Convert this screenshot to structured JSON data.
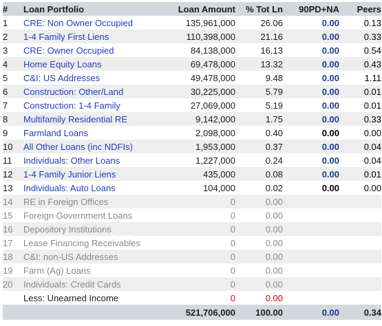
{
  "header": {
    "idx": "#",
    "name": "Loan Portfolio",
    "amount": "Loan Amount",
    "pct": "% Tot Ln",
    "pd": "90PD+NA",
    "peers": "Peers"
  },
  "rows": [
    {
      "idx": "1",
      "name": "CRE: Non Owner Occupied",
      "amount": "135,961,000",
      "pct": "26.06",
      "pd": "0.00",
      "peers": "0.13"
    },
    {
      "idx": "2",
      "name": "1-4 Family First Liens",
      "amount": "110,398,000",
      "pct": "21.16",
      "pd": "0.00",
      "peers": "0.33"
    },
    {
      "idx": "3",
      "name": "CRE: Owner Occupied",
      "amount": "84,138,000",
      "pct": "16.13",
      "pd": "0.00",
      "peers": "0.54"
    },
    {
      "idx": "4",
      "name": "Home Equity Loans",
      "amount": "69,478,000",
      "pct": "13.32",
      "pd": "0.00",
      "peers": "0.43"
    },
    {
      "idx": "5",
      "name": "C&I: US Addresses",
      "amount": "49,478,000",
      "pct": "9.48",
      "pd": "0.00",
      "peers": "1.11"
    },
    {
      "idx": "6",
      "name": "Construction: Other/Land",
      "amount": "30,225,000",
      "pct": "5.79",
      "pd": "0.00",
      "peers": "0.01"
    },
    {
      "idx": "7",
      "name": "Construction: 1-4 Family",
      "amount": "27,069,000",
      "pct": "5.19",
      "pd": "0.00",
      "peers": "0.01"
    },
    {
      "idx": "8",
      "name": "Multifamily Residential RE",
      "amount": "9,142,000",
      "pct": "1.75",
      "pd": "0.00",
      "peers": "0.33"
    },
    {
      "idx": "9",
      "name": "Farmland Loans",
      "amount": "2,098,000",
      "pct": "0.40",
      "pd": "0.00",
      "peers": "0.00"
    },
    {
      "idx": "10",
      "name": "All Other Loans (inc NDFIs)",
      "amount": "1,953,000",
      "pct": "0.37",
      "pd": "0.00",
      "peers": "0.04"
    },
    {
      "idx": "11",
      "name": "Individuals: Other Loans",
      "amount": "1,227,000",
      "pct": "0.24",
      "pd": "0.00",
      "peers": "0.04"
    },
    {
      "idx": "12",
      "name": "1-4 Family Junior Liens",
      "amount": "435,000",
      "pct": "0.08",
      "pd": "0.00",
      "peers": "0.01"
    },
    {
      "idx": "13",
      "name": "Individuals: Auto Loans",
      "amount": "104,000",
      "pct": "0.02",
      "pd": "0.00",
      "peers": "0.00"
    },
    {
      "idx": "14",
      "name": "RE in Foreign Offices",
      "amount": "0",
      "pct": "0.00",
      "pd": "",
      "peers": ""
    },
    {
      "idx": "15",
      "name": "Foreign Government Loans",
      "amount": "0",
      "pct": "0.00",
      "pd": "",
      "peers": ""
    },
    {
      "idx": "16",
      "name": "Depository Institutions",
      "amount": "0",
      "pct": "0.00",
      "pd": "",
      "peers": ""
    },
    {
      "idx": "17",
      "name": "Lease Financing Receivables",
      "amount": "0",
      "pct": "0.00",
      "pd": "",
      "peers": ""
    },
    {
      "idx": "18",
      "name": "C&I: non-US Addresses",
      "amount": "0",
      "pct": "0.00",
      "pd": "",
      "peers": ""
    },
    {
      "idx": "19",
      "name": "Farm (Ag) Loans",
      "amount": "0",
      "pct": "0.00",
      "pd": "",
      "peers": ""
    },
    {
      "idx": "20",
      "name": "Individuals: Credit Cards",
      "amount": "0",
      "pct": "0.00",
      "pd": "",
      "peers": ""
    }
  ],
  "unearned": {
    "idx": "",
    "name": "Less: Unearned Income",
    "amount": "0",
    "pct": "0.00",
    "pd": "",
    "peers": ""
  },
  "total": {
    "amount": "521,706,000",
    "pct": "100.00",
    "pd": "0.00",
    "peers": "0.34"
  },
  "colors": {
    "header_bg": "#d4d7db",
    "alt_row_bg": "#eeeeee",
    "link": "#1f3fbf",
    "pd_value": "#1a3f86",
    "negative_red": "#e00000",
    "dim_text": "#8a8a8a"
  }
}
